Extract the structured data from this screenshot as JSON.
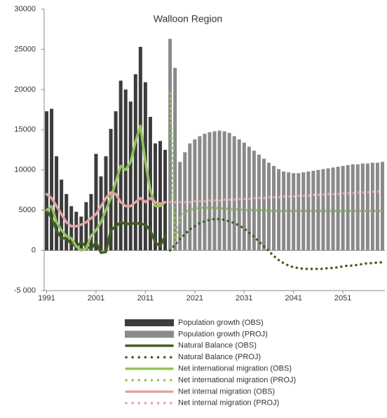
{
  "chart_data": {
    "type": "bar-line",
    "title": "Walloon Region",
    "xlim": [
      1990.5,
      2059.5
    ],
    "xticks": [
      1991,
      2001,
      2011,
      2021,
      2031,
      2041,
      2051
    ],
    "ylim": [
      -5000,
      30000
    ],
    "yticks": [
      {
        "value": -5000,
        "label": "-5 000"
      },
      0,
      5000,
      10000,
      15000,
      20000,
      25000,
      30000
    ],
    "series": [
      {
        "name": "Population growth (OBS)",
        "kind": "bar",
        "color": "#3c3c3c",
        "x": [
          1991,
          1992,
          1993,
          1994,
          1995,
          1996,
          1997,
          1998,
          1999,
          2000,
          2001,
          2002,
          2003,
          2004,
          2005,
          2006,
          2007,
          2008,
          2009,
          2010,
          2011,
          2012,
          2013,
          2014,
          2015
        ],
        "values": [
          17300,
          17600,
          11700,
          8800,
          7000,
          5500,
          4800,
          4200,
          6000,
          7000,
          12000,
          9200,
          11700,
          15100,
          17300,
          21100,
          20000,
          18500,
          21900,
          25300,
          20900,
          16600,
          13300,
          13600,
          12500
        ]
      },
      {
        "name": "Population growth (PROJ)",
        "kind": "bar",
        "color": "#8a8a8a",
        "x": [
          2016,
          2017,
          2018,
          2019,
          2020,
          2021,
          2022,
          2023,
          2024,
          2025,
          2026,
          2027,
          2028,
          2029,
          2030,
          2031,
          2032,
          2033,
          2034,
          2035,
          2036,
          2037,
          2038,
          2039,
          2040,
          2041,
          2042,
          2043,
          2044,
          2045,
          2046,
          2047,
          2048,
          2049,
          2050,
          2051,
          2052,
          2053,
          2054,
          2055,
          2056,
          2057,
          2058,
          2059
        ],
        "values": [
          26300,
          22700,
          11000,
          12200,
          13300,
          13800,
          14200,
          14500,
          14700,
          14800,
          14900,
          14800,
          14600,
          14200,
          13800,
          13400,
          12900,
          12400,
          11900,
          11400,
          10900,
          10500,
          10100,
          9800,
          9700,
          9600,
          9600,
          9700,
          9800,
          9900,
          10000,
          10100,
          10200,
          10300,
          10400,
          10500,
          10600,
          10700,
          10700,
          10800,
          10800,
          10900,
          10900,
          11000
        ]
      },
      {
        "name": "Natural Balance (OBS)",
        "kind": "line",
        "dotted": false,
        "color": "#3f5f1f",
        "x": [
          1991,
          1992,
          1993,
          1994,
          1995,
          1996,
          1997,
          1998,
          1999,
          2000,
          2001,
          2002,
          2003,
          2004,
          2005,
          2006,
          2007,
          2008,
          2009,
          2010,
          2011,
          2012,
          2013,
          2014,
          2015
        ],
        "values": [
          5000,
          4000,
          2500,
          1500,
          1500,
          800,
          500,
          1000,
          500,
          200,
          1000,
          -300,
          -200,
          2500,
          3000,
          3500,
          3300,
          3300,
          3400,
          3300,
          3200,
          2500,
          1000,
          500,
          1800
        ]
      },
      {
        "name": "Natural Balance (PROJ)",
        "kind": "line",
        "dotted": true,
        "color": "#3f5f1f",
        "x": [
          2016,
          2017,
          2018,
          2019,
          2020,
          2021,
          2022,
          2023,
          2024,
          2025,
          2026,
          2027,
          2028,
          2029,
          2030,
          2031,
          2032,
          2033,
          2034,
          2035,
          2036,
          2037,
          2038,
          2039,
          2040,
          2041,
          2042,
          2043,
          2044,
          2045,
          2046,
          2047,
          2048,
          2049,
          2050,
          2051,
          2052,
          2053,
          2054,
          2055,
          2056,
          2057,
          2058,
          2059
        ],
        "values": [
          0,
          700,
          1400,
          2000,
          2600,
          3000,
          3400,
          3600,
          3800,
          3900,
          3900,
          3800,
          3600,
          3400,
          3100,
          2700,
          2200,
          1700,
          1100,
          500,
          -100,
          -700,
          -1200,
          -1600,
          -1900,
          -2100,
          -2200,
          -2300,
          -2300,
          -2300,
          -2300,
          -2300,
          -2200,
          -2200,
          -2100,
          -2000,
          -1900,
          -1900,
          -1800,
          -1700,
          -1600,
          -1600,
          -1500,
          -1500
        ]
      },
      {
        "name": "Net international migration (OBS)",
        "kind": "line",
        "dotted": false,
        "color": "#93c45c",
        "x": [
          1991,
          1992,
          1993,
          1994,
          1995,
          1996,
          1997,
          1998,
          1999,
          2000,
          2001,
          2002,
          2003,
          2004,
          2005,
          2006,
          2007,
          2008,
          2009,
          2010,
          2011,
          2012,
          2013,
          2014,
          2015
        ],
        "values": [
          5000,
          5500,
          3500,
          2500,
          1800,
          1500,
          500,
          0,
          200,
          1800,
          2500,
          3500,
          5000,
          6500,
          8500,
          10500,
          10000,
          11000,
          13500,
          15500,
          11000,
          7500,
          5500,
          5500,
          6000
        ]
      },
      {
        "name": "Net international migration (PROJ)",
        "kind": "line",
        "dotted": true,
        "color": "#93c45c",
        "x": [
          2016,
          2017,
          2018,
          2019,
          2020,
          2021,
          2022,
          2023,
          2024,
          2025,
          2026,
          2027,
          2028,
          2029,
          2030,
          2031,
          2032,
          2033,
          2034,
          2035,
          2036,
          2037,
          2038,
          2039,
          2040,
          2041,
          2042,
          2043,
          2044,
          2045,
          2046,
          2047,
          2048,
          2049,
          2050,
          2051,
          2052,
          2053,
          2054,
          2055,
          2056,
          2057,
          2058,
          2059
        ],
        "values": [
          19500,
          1000,
          4000,
          4800,
          5000,
          5200,
          5300,
          5300,
          5300,
          5300,
          5200,
          5200,
          5100,
          5100,
          5100,
          5000,
          5000,
          5000,
          5000,
          5000,
          4900,
          4900,
          4900,
          4900,
          4900,
          4900,
          4900,
          4900,
          4900,
          4900,
          4900,
          4900,
          4900,
          4900,
          4900,
          4900,
          4900,
          4900,
          4900,
          4900,
          4900,
          4900,
          4900,
          4900
        ]
      },
      {
        "name": "Net internal migration (OBS)",
        "kind": "line",
        "dotted": false,
        "color": "#e6a3a3",
        "x": [
          1991,
          1992,
          1993,
          1994,
          1995,
          1996,
          1997,
          1998,
          1999,
          2000,
          2001,
          2002,
          2003,
          2004,
          2005,
          2006,
          2007,
          2008,
          2009,
          2010,
          2011,
          2012,
          2013,
          2014,
          2015
        ],
        "values": [
          7000,
          6500,
          5500,
          4500,
          3500,
          3000,
          3000,
          3200,
          3500,
          4000,
          4500,
          5500,
          6500,
          7200,
          7000,
          6000,
          5500,
          5500,
          6000,
          6500,
          6000,
          6500,
          6000,
          5800,
          6000
        ]
      },
      {
        "name": "Net internal migration (PROJ)",
        "kind": "line",
        "dotted": true,
        "color": "#e6a3a3",
        "x": [
          2016,
          2017,
          2018,
          2019,
          2020,
          2021,
          2022,
          2023,
          2024,
          2025,
          2026,
          2027,
          2028,
          2029,
          2030,
          2031,
          2032,
          2033,
          2034,
          2035,
          2036,
          2037,
          2038,
          2039,
          2040,
          2041,
          2042,
          2043,
          2044,
          2045,
          2046,
          2047,
          2048,
          2049,
          2050,
          2051,
          2052,
          2053,
          2054,
          2055,
          2056,
          2057,
          2058,
          2059
        ],
        "values": [
          6000,
          6000,
          6000,
          6000,
          6000,
          6100,
          6100,
          6100,
          6200,
          6200,
          6200,
          6300,
          6300,
          6300,
          6400,
          6400,
          6400,
          6500,
          6500,
          6500,
          6600,
          6600,
          6600,
          6700,
          6700,
          6700,
          6800,
          6800,
          6800,
          6900,
          6900,
          6900,
          7000,
          7000,
          7000,
          7100,
          7100,
          7100,
          7200,
          7200,
          7200,
          7300,
          7300,
          7300
        ]
      }
    ]
  }
}
